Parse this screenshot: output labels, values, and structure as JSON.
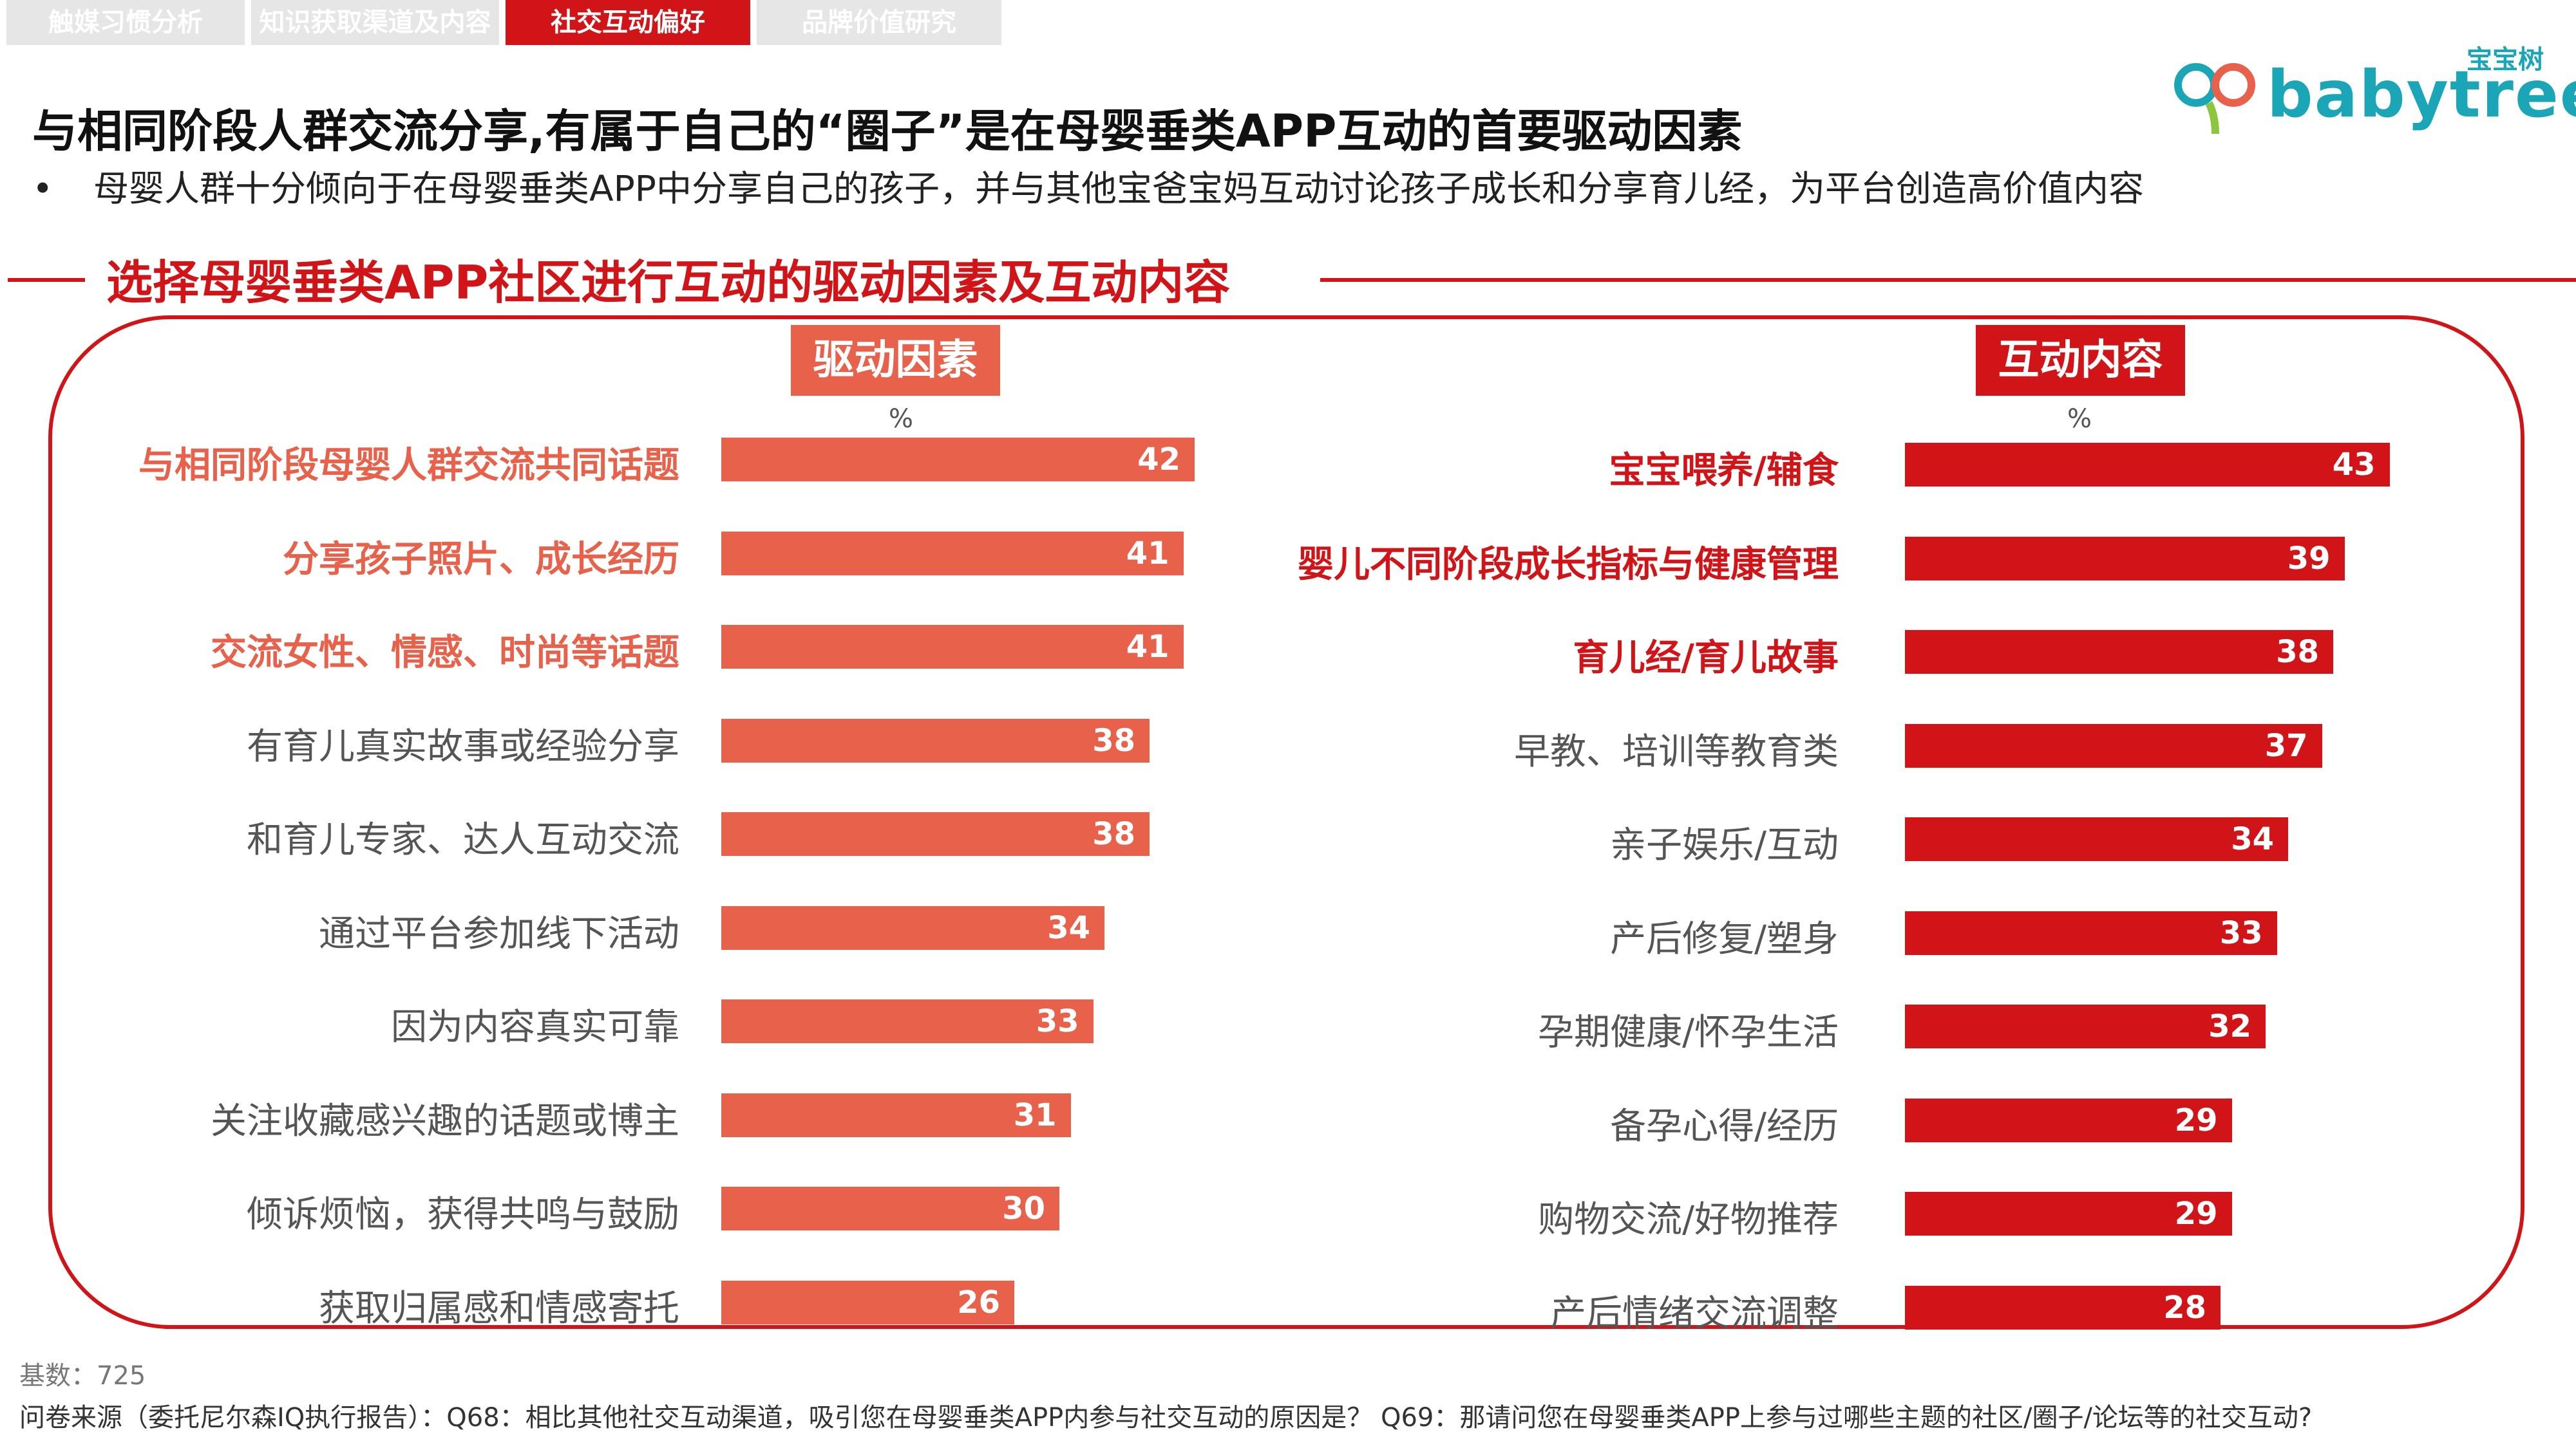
{
  "tabs": [
    {
      "label": "触媒习惯分析",
      "active": false
    },
    {
      "label": "知识获取渠道及内容",
      "active": false
    },
    {
      "label": "社交互动偏好",
      "active": true
    },
    {
      "label": "品牌价值研究",
      "active": false
    }
  ],
  "logo": {
    "cn": "宝宝树",
    "en": "babytree"
  },
  "title": "与相同阶段人群交流分享,有属于自己的“圈子”是在母婴垂类APP互动的首要驱动因素",
  "bullet": {
    "symbol": "•",
    "text": "母婴人群十分倾向于在母婴垂类APP中分享自己的孩子，并与其他宝爸宝妈互动讨论孩子成长和分享育儿经，为平台创造高价值内容"
  },
  "section_title": "选择母婴垂类APP社区进行互动的驱动因素及互动内容",
  "colors": {
    "left_bar": "#e8614b",
    "right_bar": "#d01417",
    "left_highlight": "#e8614b",
    "right_highlight": "#d01417",
    "plain_label": "#555555"
  },
  "chart_data": [
    {
      "type": "bar",
      "orientation": "horizontal",
      "title": "驱动因素",
      "unit": "%",
      "categories": [
        "与相同阶段母婴人群交流共同话题",
        "分享孩子照片、成长经历",
        "交流女性、情感、时尚等话题",
        "有育儿真实故事或经验分享",
        "和育儿专家、达人互动交流",
        "通过平台参加线下活动",
        "因为内容真实可靠",
        "关注收藏感兴趣的话题或博主",
        "倾诉烦恼，获得共鸣与鼓励",
        "获取归属感和情感寄托"
      ],
      "values": [
        42,
        41,
        41,
        38,
        38,
        34,
        33,
        31,
        30,
        26
      ],
      "highlight_count": 3,
      "xlim": [
        0,
        50
      ]
    },
    {
      "type": "bar",
      "orientation": "horizontal",
      "title": "互动内容",
      "unit": "%",
      "categories": [
        "宝宝喂养/辅食",
        "婴儿不同阶段成长指标与健康管理",
        "育儿经/育儿故事",
        "早教、培训等教育类",
        "亲子娱乐/互动",
        "产后修复/塑身",
        "孕期健康/怀孕生活",
        "备孕心得/经历",
        "购物交流/好物推荐",
        "产后情绪交流调整"
      ],
      "values": [
        43,
        39,
        38,
        37,
        34,
        33,
        32,
        29,
        29,
        28
      ],
      "highlight_count": 3,
      "xlim": [
        0,
        50
      ]
    }
  ],
  "base_text": "基数：725",
  "source_text": "问卷来源（委托尼尔森IQ执行报告）：Q68：相比其他社交互动渠道，吸引您在母婴垂类APP内参与社交互动的原因是？ Q69：那请问您在母婴垂类APP上参与过哪些主题的社区/圈子/论坛等的社交互动?"
}
